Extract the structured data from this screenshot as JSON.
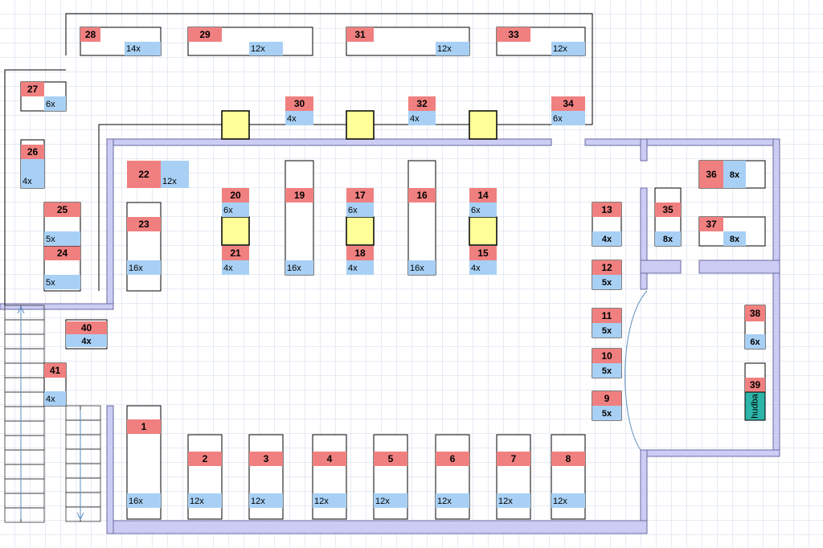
{
  "units": [
    {
      "number": "1",
      "count": "16x"
    },
    {
      "number": "2",
      "count": "12x"
    },
    {
      "number": "3",
      "count": "12x"
    },
    {
      "number": "4",
      "count": "12x"
    },
    {
      "number": "5",
      "count": "12x"
    },
    {
      "number": "6",
      "count": "12x"
    },
    {
      "number": "7",
      "count": "12x"
    },
    {
      "number": "8",
      "count": "12x"
    },
    {
      "number": "9",
      "count": "5x"
    },
    {
      "number": "10",
      "count": "5x"
    },
    {
      "number": "11",
      "count": "5x"
    },
    {
      "number": "12",
      "count": "5x"
    },
    {
      "number": "13",
      "count": "4x"
    },
    {
      "number": "14",
      "count": "6x"
    },
    {
      "number": "15",
      "count": "4x"
    },
    {
      "number": "16",
      "count": "16x"
    },
    {
      "number": "17",
      "count": "6x"
    },
    {
      "number": "18",
      "count": "4x"
    },
    {
      "number": "19",
      "count": "16x"
    },
    {
      "number": "20",
      "count": "6x"
    },
    {
      "number": "21",
      "count": "4x"
    },
    {
      "number": "22",
      "count": "12x"
    },
    {
      "number": "23",
      "count": "16x"
    },
    {
      "number": "24",
      "count": "5x"
    },
    {
      "number": "25",
      "count": "5x"
    },
    {
      "number": "26",
      "count": "4x"
    },
    {
      "number": "27",
      "count": "6x"
    },
    {
      "number": "28",
      "count": "14x"
    },
    {
      "number": "29",
      "count": "12x"
    },
    {
      "number": "30",
      "count": "4x"
    },
    {
      "number": "31",
      "count": "12x"
    },
    {
      "number": "32",
      "count": "4x"
    },
    {
      "number": "33",
      "count": "12x"
    },
    {
      "number": "34",
      "count": "6x"
    },
    {
      "number": "35",
      "count": "8x"
    },
    {
      "number": "36",
      "count": "8x"
    },
    {
      "number": "37",
      "count": "8x"
    },
    {
      "number": "38",
      "count": "6x"
    },
    {
      "number": "39",
      "count": "hudba"
    },
    {
      "number": "40",
      "count": "4x"
    },
    {
      "number": "41",
      "count": "4x"
    }
  ]
}
